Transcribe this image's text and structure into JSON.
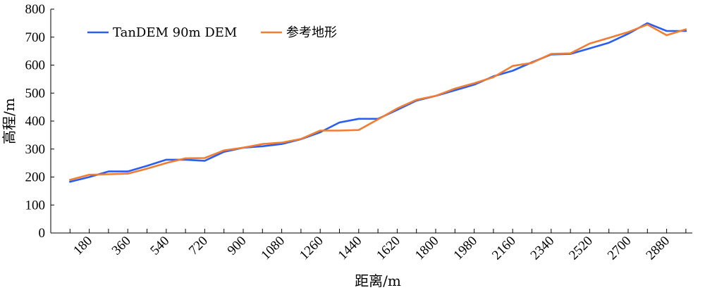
{
  "chart_data": {
    "type": "line",
    "xlabel": "距离/m",
    "ylabel": "高程/m",
    "ylim": [
      0,
      800
    ],
    "xlim": [
      0,
      3000
    ],
    "y_ticks": [
      0,
      100,
      200,
      300,
      400,
      500,
      600,
      700,
      800
    ],
    "x_tick_labels": [
      180,
      360,
      540,
      720,
      900,
      1080,
      1260,
      1440,
      1620,
      1800,
      1980,
      2160,
      2340,
      2520,
      2700,
      2880
    ],
    "legend_position": "top-left",
    "grid": false,
    "x": [
      90,
      180,
      270,
      360,
      450,
      540,
      630,
      720,
      810,
      900,
      990,
      1080,
      1170,
      1260,
      1350,
      1440,
      1530,
      1620,
      1710,
      1800,
      1890,
      1980,
      2070,
      2160,
      2250,
      2340,
      2430,
      2520,
      2610,
      2700,
      2790,
      2880,
      2970
    ],
    "series": [
      {
        "name": "TanDEM 90m DEM",
        "color": "#2a5ef0",
        "values": [
          183,
          200,
          220,
          220,
          240,
          262,
          262,
          258,
          290,
          305,
          310,
          318,
          335,
          360,
          395,
          408,
          408,
          440,
          473,
          490,
          510,
          530,
          560,
          580,
          610,
          638,
          640,
          660,
          680,
          712,
          750,
          722,
          722
        ]
      },
      {
        "name": "参考地形",
        "color": "#f07d32",
        "values": [
          190,
          208,
          210,
          212,
          230,
          250,
          267,
          268,
          295,
          305,
          318,
          323,
          336,
          366,
          366,
          368,
          406,
          445,
          476,
          490,
          516,
          535,
          557,
          597,
          608,
          640,
          642,
          677,
          697,
          718,
          745,
          707,
          728
        ]
      }
    ]
  }
}
